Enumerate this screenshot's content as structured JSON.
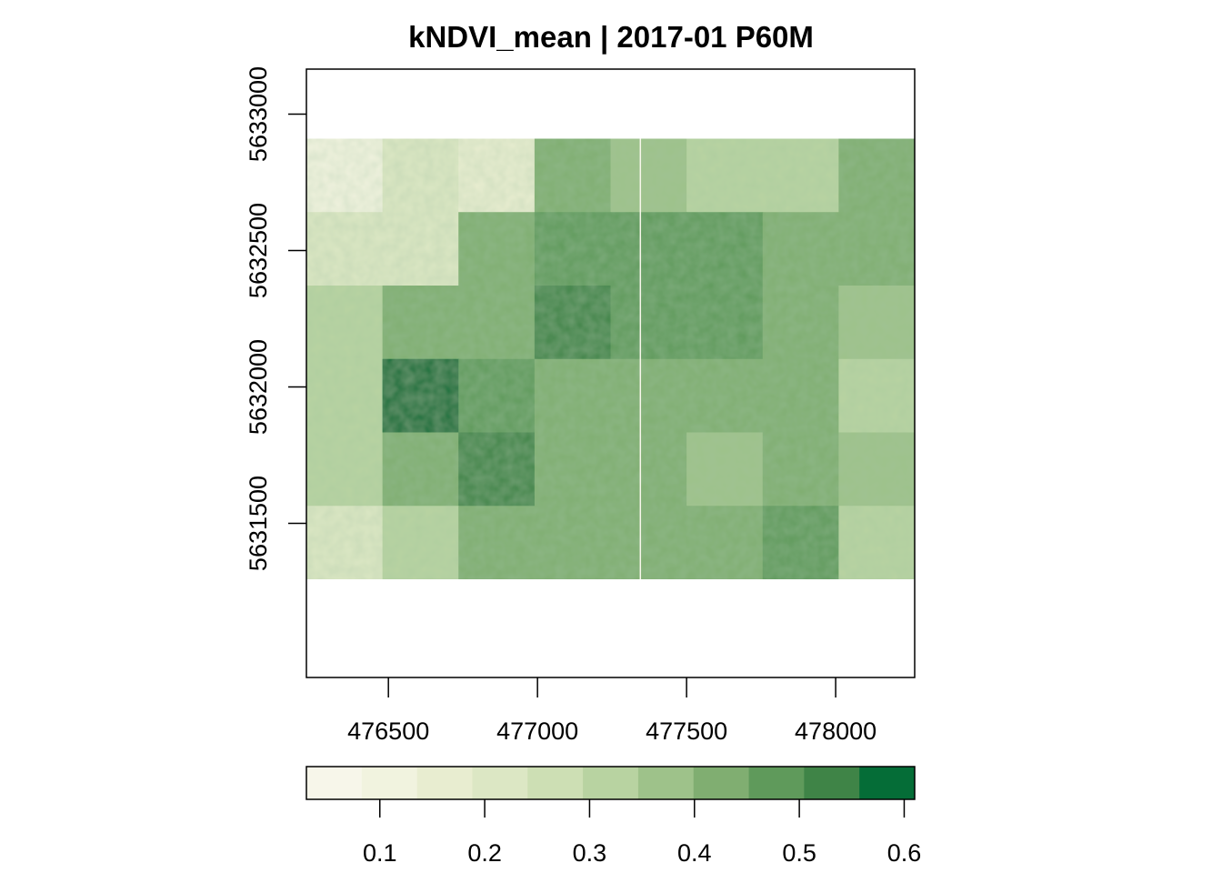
{
  "chart_data": {
    "type": "heatmap",
    "title": "kNDVI_mean | 2017-01 P60M",
    "xlabel": "",
    "ylabel": "",
    "xlim": [
      476225,
      478265
    ],
    "ylim": [
      5630935,
      5633165
    ],
    "raster_extent": {
      "xmin": 476225,
      "xmax": 478265,
      "ymin": 5631295,
      "ymax": 5632910
    },
    "x_ticks": [
      476500,
      477000,
      477500,
      478000
    ],
    "x_tick_labels": [
      "476500",
      "477000",
      "477500",
      "478000"
    ],
    "y_ticks": [
      5631500,
      5632000,
      5632500,
      5633000
    ],
    "y_tick_labels": [
      "5631500",
      "5632000",
      "5632500",
      "5633000"
    ],
    "legend": {
      "position": "bottom",
      "range": [
        0.03,
        0.61
      ],
      "breaks": [
        0.03,
        0.082727,
        0.135455,
        0.188182,
        0.240909,
        0.293636,
        0.346364,
        0.399091,
        0.451818,
        0.504545,
        0.557273,
        0.61
      ],
      "colors": [
        "#F7F6EA",
        "#F1F3DF",
        "#E8EDD0",
        "#DCE7C4",
        "#CDDFB4",
        "#B8D3A1",
        "#9EC28A",
        "#80AE71",
        "#5F9A5B",
        "#3F8447",
        "#056D37"
      ],
      "ticks": [
        0.1,
        0.2,
        0.3,
        0.4,
        0.5,
        0.6
      ],
      "tick_labels": [
        "0.1",
        "0.2",
        "0.3",
        "0.4",
        "0.5",
        "0.6"
      ]
    },
    "grid": false,
    "values_grid": {
      "columns": 8,
      "rows": 6,
      "approximate": true,
      "values": [
        [
          0.12,
          0.22,
          0.18,
          0.4,
          0.36,
          0.33,
          0.31,
          0.4
        ],
        [
          0.2,
          0.24,
          0.4,
          0.46,
          0.5,
          0.46,
          0.44,
          0.4
        ],
        [
          0.3,
          0.44,
          0.44,
          0.52,
          0.5,
          0.46,
          0.44,
          0.36
        ],
        [
          0.34,
          0.56,
          0.46,
          0.44,
          0.44,
          0.4,
          0.42,
          0.3
        ],
        [
          0.3,
          0.44,
          0.55,
          0.44,
          0.4,
          0.36,
          0.44,
          0.36
        ],
        [
          0.22,
          0.3,
          0.44,
          0.4,
          0.4,
          0.4,
          0.46,
          0.3
        ]
      ]
    }
  }
}
